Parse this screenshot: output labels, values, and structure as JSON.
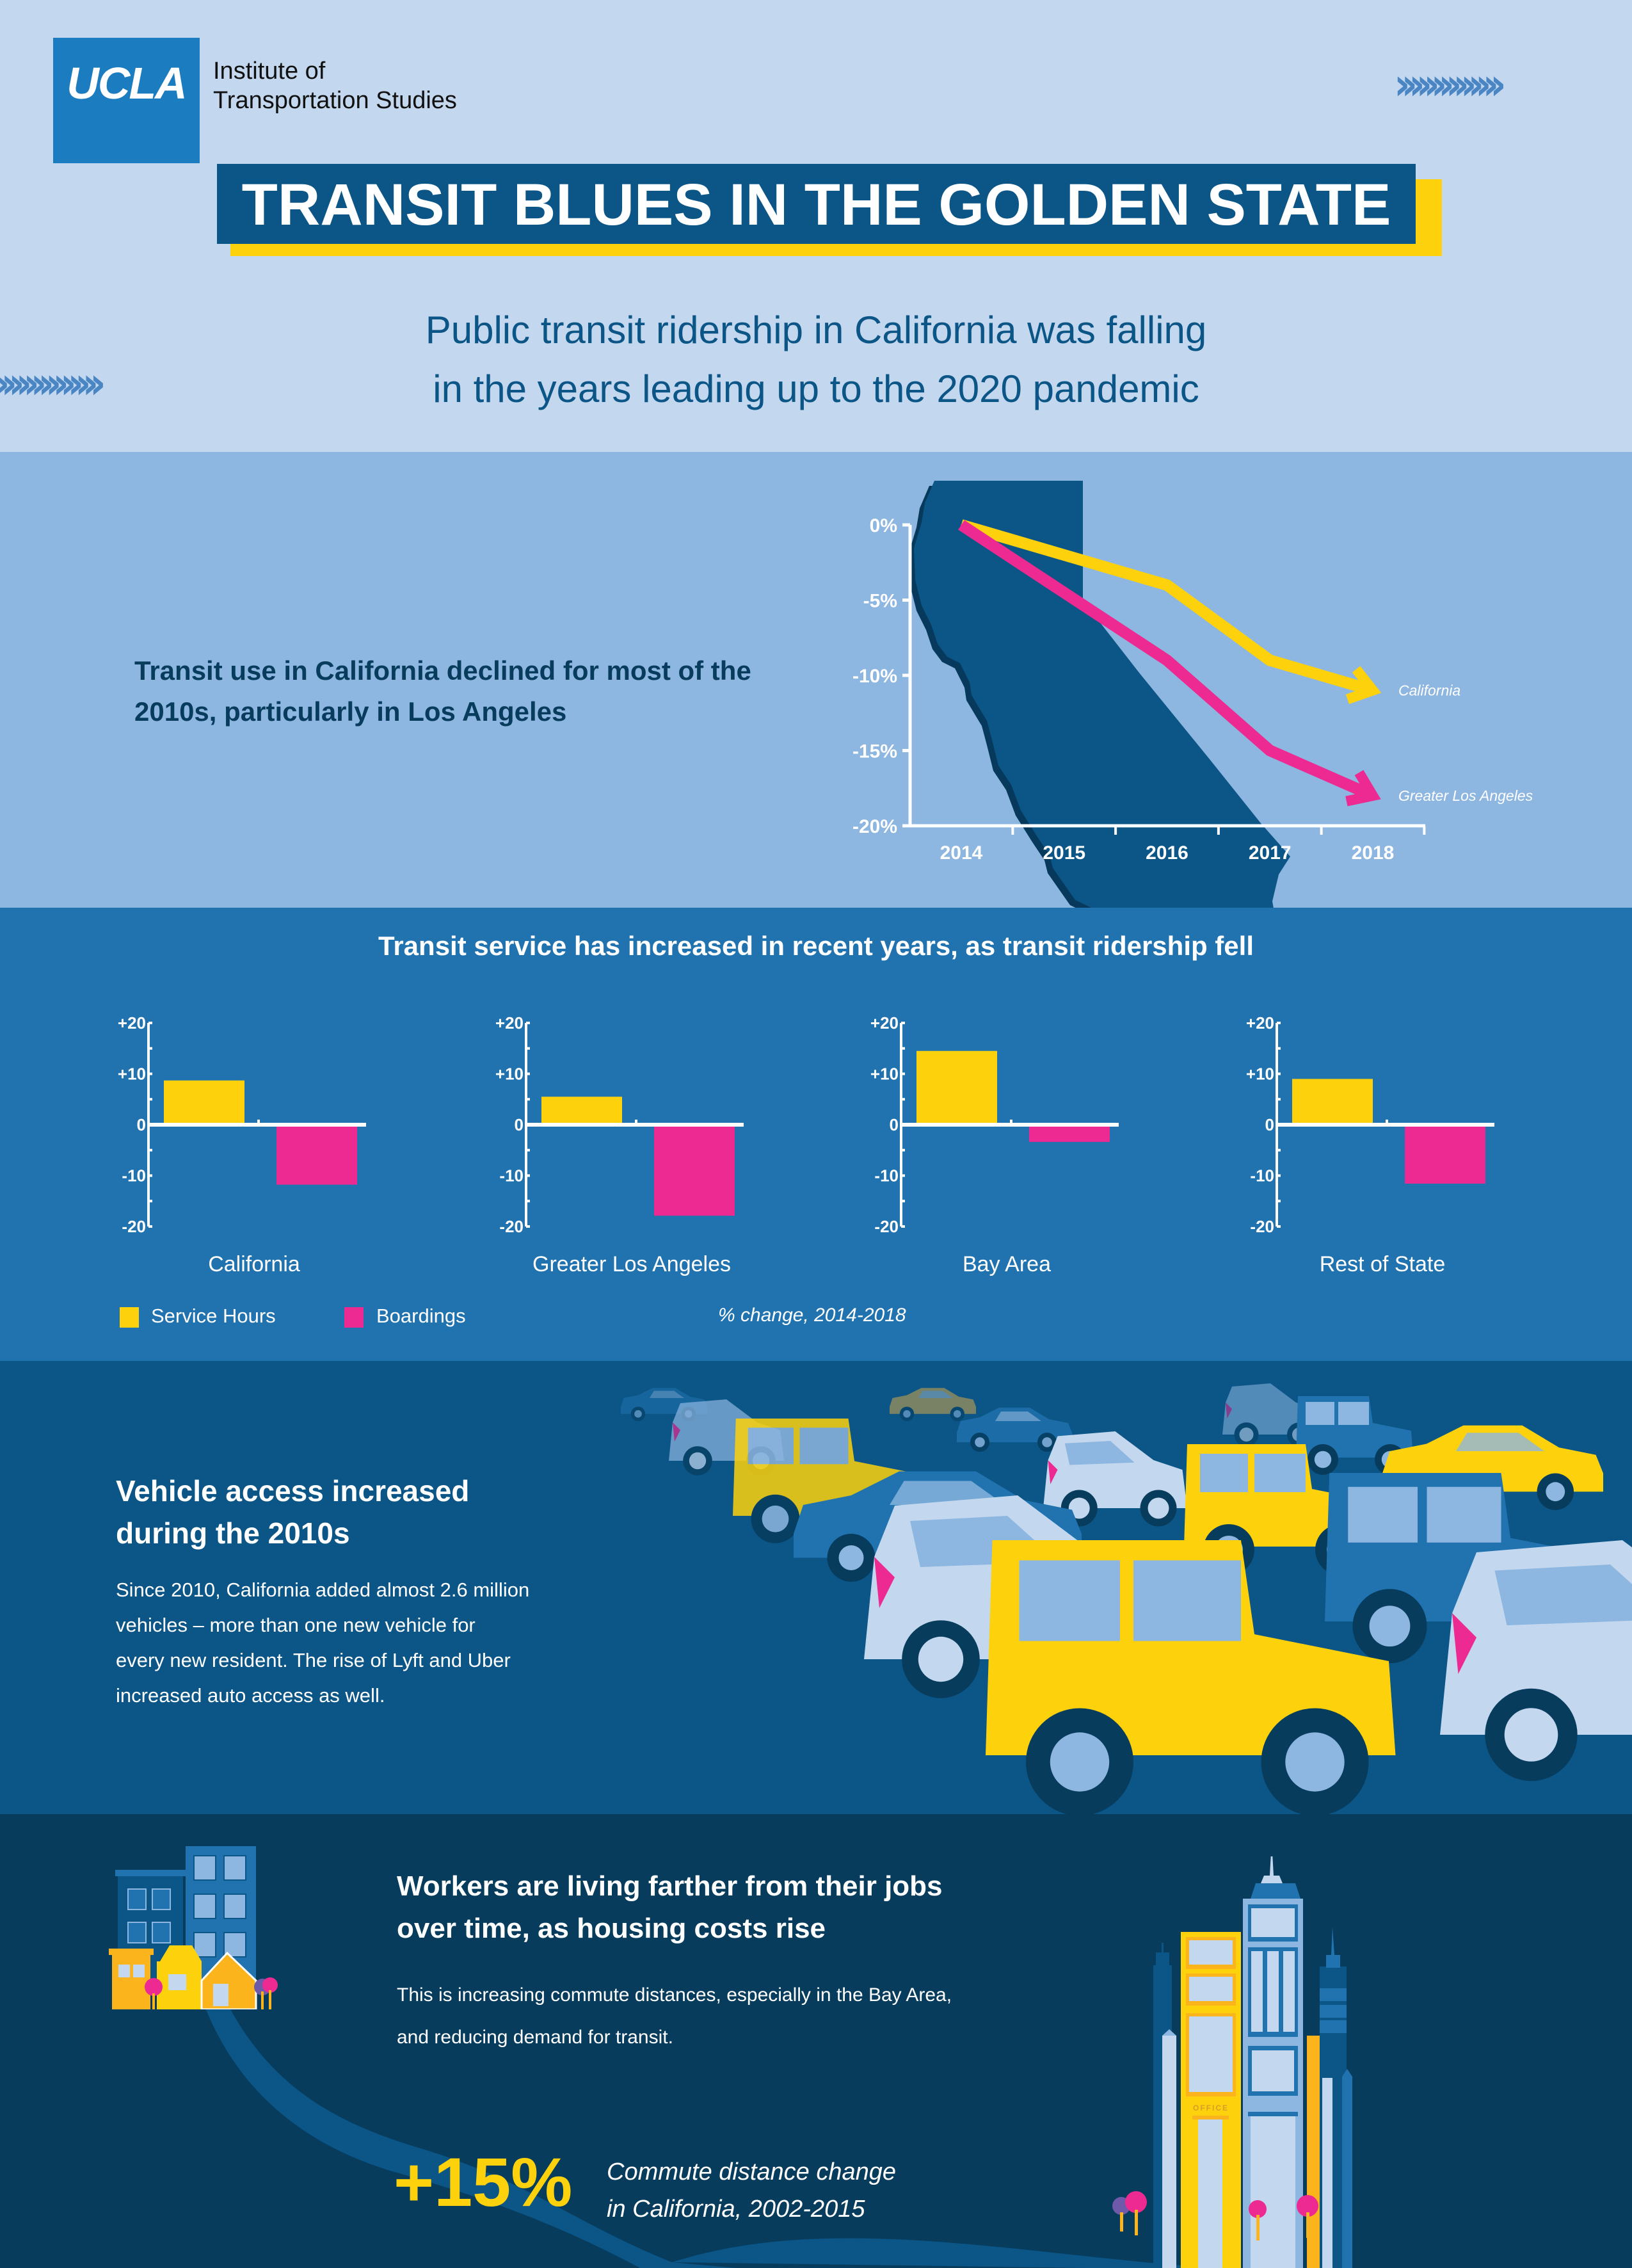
{
  "header": {
    "logo": "UCLA",
    "institute_line1": "Institute of",
    "institute_line2": "Transportation Studies",
    "title": "TRANSIT BLUES IN THE GOLDEN STATE",
    "subtitle_line1": "Public transit ridership in California was falling",
    "subtitle_line2": "in the years leading up to the 2020 pandemic",
    "chevrons": "››››››››››››››"
  },
  "colors": {
    "yellow": "#fdd20c",
    "pink": "#ec2a91",
    "navy": "#0b5587",
    "mid_blue": "#2173b0",
    "light_blue": "#8db6e0",
    "pale_blue": "#c3d7ee",
    "deep_navy": "#073c5d"
  },
  "ridership": {
    "text": "Transit use in California declined for most of the 2010s, particularly in Los Angeles"
  },
  "chart_data": [
    {
      "type": "line",
      "title": "",
      "x": [
        2014,
        2015,
        2016,
        2017,
        2018
      ],
      "x_tick_labels": [
        "2014",
        "2015",
        "2016",
        "2017",
        "2018"
      ],
      "y_tick_labels": [
        "0%",
        "-5%",
        "-10%",
        "-15%",
        "-20%"
      ],
      "y_ticks": [
        0,
        -5,
        -10,
        -15,
        -20
      ],
      "ylim": [
        -20,
        0
      ],
      "series": [
        {
          "name": "California",
          "color": "#fdd20c",
          "values": [
            0,
            -2,
            -4,
            -9,
            -11
          ]
        },
        {
          "name": "Greater Los Angeles",
          "color": "#ec2a91",
          "values": [
            0,
            -4.5,
            -9,
            -15,
            -18
          ]
        }
      ],
      "legend": "end-of-line labels"
    },
    {
      "type": "bar",
      "title": "Transit service has increased in recent years, as transit ridership fell",
      "categories": [
        "California",
        "Greater Los Angeles",
        "Bay Area",
        "Rest of State"
      ],
      "series": [
        {
          "name": "Service Hours",
          "color": "#fdd20c",
          "values": [
            8.7,
            5.5,
            14.5,
            9
          ]
        },
        {
          "name": "Boardings",
          "color": "#ec2a91",
          "values": [
            -11.4,
            -17.5,
            -3,
            -11.2
          ]
        }
      ],
      "y_tick_labels": [
        "+20",
        "+10",
        "0",
        "-10",
        "-20"
      ],
      "y_ticks": [
        20,
        10,
        0,
        -10,
        -20
      ],
      "ylim": [
        -20,
        20
      ],
      "note": "% change, 2014-2018",
      "legend": "bottom-left"
    }
  ],
  "vehicles": {
    "heading_line1": "Vehicle access increased",
    "heading_line2": "during the 2010s",
    "body_lines": [
      "Since 2010, California added almost 2.6 million",
      "vehicles – more than one new vehicle for",
      "every new resident. The rise of Lyft and Uber",
      "increased auto access as well."
    ]
  },
  "commute": {
    "heading_line1": "Workers are living farther from their jobs",
    "heading_line2": "over time, as housing costs rise",
    "body_line1": "This is increasing commute distances, especially in the Bay Area,",
    "body_line2": "and reducing demand for transit.",
    "stat": "+15%",
    "stat_caption_line1": "Commute distance change",
    "stat_caption_line2": "in California, 2002-2015",
    "office_sign": "OFFICE"
  }
}
